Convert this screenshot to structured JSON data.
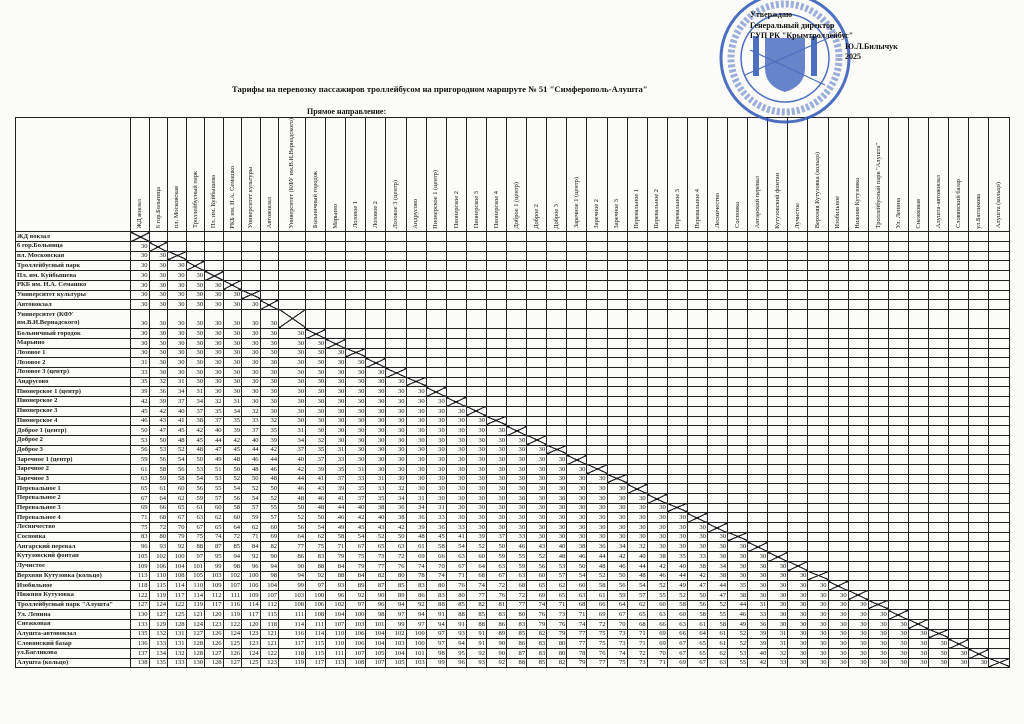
{
  "approval": {
    "line1": "Утверждаю",
    "line2": "Генеральный директор",
    "line3": "ГУП РК \"Крымтроллейбус\"",
    "line4": "Ю.Л.Билычук",
    "line5": "2025"
  },
  "title": "Тарифы на перевозку пассажиров троллейбусом на пригородном маршруте № 51 \"Симферополь-Алушта\"",
  "subtitle": "Прямое направление:",
  "colors": {
    "stamp": "#2f57b8",
    "ink": "#111111"
  },
  "columns": [
    "ЖД вокзал",
    "6 гор.Больница",
    "пл. Московская",
    "Троллейбусный парк",
    "Пл. им. Куйбышева",
    "РКБ им. Н.А. Семашко",
    "Университет культуры",
    "Автовокзал",
    "Университет (КФУ им.В.И.Вернадского)",
    "Больничный городок",
    "Марьино",
    "Лозовое 1",
    "Лозовое 2",
    "Лозовое 3 (центр)",
    "Андрусово",
    "Пионерское 1 (центр)",
    "Пионерское 2",
    "Пионерское 3",
    "Пионерское 4",
    "Доброе 1 (центр)",
    "Доброе 2",
    "Доброе 3",
    "Заречное 1 (центр)",
    "Заречное 2",
    "Заречное 3",
    "Перевальное 1",
    "Перевальное 2",
    "Перевальное 3",
    "Перевальное 4",
    "Лесничество",
    "Сосновка",
    "Ангарский перевал",
    "Кутузовский фонтан",
    "Лучистое",
    "Верхняя Кутузовка (кольцо)",
    "Изобильное",
    "Нижняя Кутузовка",
    "Троллейбусный парк \"Алушта\"",
    "Ул. Ленина",
    "Снежковая",
    "Алушта-автовокзал",
    "Словянский базар",
    "ул.Багликова",
    "Алушта (кольцо)"
  ],
  "rows": [
    {
      "label": "ЖД вокзал",
      "fares": []
    },
    {
      "label": "6 гор.Больница",
      "fares": [
        30
      ]
    },
    {
      "label": "пл. Московская",
      "fares": [
        30,
        30
      ]
    },
    {
      "label": "Троллейбусный парк",
      "fares": [
        30,
        30,
        30
      ]
    },
    {
      "label": "Пл. им. Куйбышева",
      "fares": [
        30,
        30,
        30,
        30
      ]
    },
    {
      "label": "РКБ им. Н.А. Семашко",
      "fares": [
        30,
        30,
        30,
        30,
        30
      ]
    },
    {
      "label": "Университет культуры",
      "fares": [
        30,
        30,
        30,
        30,
        30,
        30
      ]
    },
    {
      "label": "Автовокзал",
      "fares": [
        30,
        30,
        30,
        30,
        30,
        30,
        30
      ]
    },
    {
      "label": "Университет (КФУ им.В.И.Вернадского)",
      "fares": [
        30,
        30,
        30,
        30,
        30,
        30,
        30,
        30
      ]
    },
    {
      "label": "Больничный городок",
      "fares": [
        30,
        30,
        30,
        30,
        30,
        30,
        30,
        30,
        30
      ]
    },
    {
      "label": "Марьино",
      "fares": [
        30,
        30,
        30,
        30,
        30,
        30,
        30,
        30,
        30,
        30
      ]
    },
    {
      "label": "Лозовое 1",
      "fares": [
        30,
        30,
        30,
        30,
        30,
        30,
        30,
        30,
        30,
        30,
        30
      ]
    },
    {
      "label": "Лозовое 2",
      "fares": [
        31,
        30,
        30,
        30,
        30,
        30,
        30,
        30,
        30,
        30,
        30,
        30
      ]
    },
    {
      "label": "Лозовое 3 (центр)",
      "fares": [
        33,
        30,
        30,
        30,
        30,
        30,
        30,
        30,
        30,
        30,
        30,
        30,
        30
      ]
    },
    {
      "label": "Андрусово",
      "fares": [
        35,
        32,
        31,
        30,
        30,
        30,
        30,
        30,
        30,
        30,
        30,
        30,
        30,
        30
      ]
    },
    {
      "label": "Пионерское 1 (центр)",
      "fares": [
        39,
        36,
        34,
        31,
        30,
        30,
        30,
        30,
        30,
        30,
        30,
        30,
        30,
        30,
        30
      ]
    },
    {
      "label": "Пионерское 2",
      "fares": [
        42,
        39,
        37,
        34,
        32,
        31,
        30,
        30,
        30,
        30,
        30,
        30,
        30,
        30,
        30,
        30
      ]
    },
    {
      "label": "Пионерское 3",
      "fares": [
        45,
        42,
        40,
        37,
        35,
        34,
        32,
        30,
        30,
        30,
        30,
        30,
        30,
        30,
        30,
        30,
        30
      ]
    },
    {
      "label": "Пионерское 4",
      "fares": [
        46,
        43,
        41,
        38,
        37,
        35,
        33,
        32,
        30,
        30,
        30,
        30,
        30,
        30,
        30,
        30,
        30,
        30
      ]
    },
    {
      "label": "Доброе 1 (центр)",
      "fares": [
        50,
        47,
        45,
        42,
        40,
        39,
        37,
        35,
        31,
        30,
        30,
        30,
        30,
        30,
        30,
        30,
        30,
        30,
        30
      ]
    },
    {
      "label": "Доброе 2",
      "fares": [
        53,
        50,
        48,
        45,
        44,
        42,
        40,
        39,
        34,
        32,
        30,
        30,
        30,
        30,
        30,
        30,
        30,
        30,
        30,
        30
      ]
    },
    {
      "label": "Доброе 3",
      "fares": [
        56,
        53,
        52,
        48,
        47,
        45,
        44,
        42,
        37,
        35,
        31,
        30,
        30,
        30,
        30,
        30,
        30,
        30,
        30,
        30,
        30
      ]
    },
    {
      "label": "Заречное 1 (центр)",
      "fares": [
        59,
        56,
        54,
        50,
        49,
        48,
        46,
        44,
        40,
        37,
        33,
        30,
        30,
        30,
        30,
        30,
        30,
        30,
        30,
        30,
        30,
        30
      ]
    },
    {
      "label": "Заречное 2",
      "fares": [
        61,
        58,
        56,
        53,
        51,
        50,
        48,
        46,
        42,
        39,
        35,
        31,
        30,
        30,
        30,
        30,
        30,
        30,
        30,
        30,
        30,
        30,
        30
      ]
    },
    {
      "label": "Заречное 3",
      "fares": [
        63,
        59,
        58,
        54,
        53,
        52,
        50,
        48,
        44,
        41,
        37,
        33,
        31,
        30,
        30,
        30,
        30,
        30,
        30,
        30,
        30,
        30,
        30,
        30
      ]
    },
    {
      "label": "Перевальное 1",
      "fares": [
        65,
        61,
        60,
        56,
        55,
        54,
        52,
        50,
        46,
        43,
        39,
        35,
        33,
        32,
        30,
        30,
        30,
        30,
        30,
        30,
        30,
        30,
        30,
        30,
        30
      ]
    },
    {
      "label": "Перевальное 2",
      "fares": [
        67,
        64,
        62,
        59,
        57,
        56,
        54,
        52,
        48,
        46,
        41,
        37,
        35,
        34,
        31,
        30,
        30,
        30,
        30,
        30,
        30,
        30,
        30,
        30,
        30,
        30
      ]
    },
    {
      "label": "Перевальное 3",
      "fares": [
        69,
        66,
        65,
        61,
        60,
        58,
        57,
        55,
        50,
        48,
        44,
        40,
        38,
        36,
        34,
        31,
        30,
        30,
        30,
        30,
        30,
        30,
        30,
        30,
        30,
        30,
        30
      ]
    },
    {
      "label": "Перевальное 4",
      "fares": [
        71,
        68,
        67,
        63,
        62,
        60,
        59,
        57,
        52,
        50,
        46,
        42,
        40,
        38,
        36,
        33,
        30,
        30,
        30,
        30,
        30,
        30,
        30,
        30,
        30,
        30,
        30,
        30
      ]
    },
    {
      "label": "Лесничество",
      "fares": [
        75,
        72,
        70,
        67,
        65,
        64,
        62,
        60,
        56,
        54,
        49,
        45,
        43,
        42,
        39,
        36,
        33,
        30,
        30,
        30,
        30,
        30,
        30,
        30,
        30,
        30,
        30,
        30,
        30
      ]
    },
    {
      "label": "Сосновка",
      "fares": [
        83,
        80,
        79,
        75,
        74,
        72,
        71,
        69,
        64,
        62,
        58,
        54,
        52,
        50,
        48,
        45,
        41,
        39,
        37,
        33,
        30,
        30,
        30,
        30,
        30,
        30,
        30,
        30,
        30,
        30
      ]
    },
    {
      "label": "Ангарский перевал",
      "fares": [
        96,
        93,
        92,
        88,
        87,
        85,
        84,
        82,
        77,
        75,
        71,
        67,
        65,
        63,
        61,
        58,
        54,
        52,
        50,
        46,
        43,
        40,
        38,
        36,
        34,
        32,
        30,
        30,
        30,
        30,
        30
      ]
    },
    {
      "label": "Кутузовский фонтан",
      "fares": [
        105,
        102,
        100,
        97,
        95,
        94,
        92,
        90,
        86,
        83,
        79,
        75,
        73,
        72,
        69,
        66,
        63,
        60,
        59,
        55,
        52,
        48,
        46,
        44,
        42,
        40,
        38,
        35,
        33,
        30,
        30,
        30
      ]
    },
    {
      "label": "Лучистое",
      "fares": [
        109,
        106,
        104,
        101,
        99,
        98,
        96,
        94,
        90,
        88,
        84,
        79,
        77,
        76,
        74,
        70,
        67,
        64,
        63,
        59,
        56,
        53,
        50,
        48,
        46,
        44,
        42,
        40,
        38,
        34,
        30,
        30,
        30
      ]
    },
    {
      "label": "Верхняя Кутузовка (кольцо)",
      "fares": [
        113,
        110,
        108,
        105,
        103,
        102,
        100,
        98,
        94,
        92,
        88,
        84,
        82,
        80,
        78,
        74,
        71,
        68,
        67,
        63,
        60,
        57,
        54,
        52,
        50,
        48,
        46,
        44,
        42,
        38,
        30,
        30,
        30,
        30
      ]
    },
    {
      "label": "Изобильное",
      "fares": [
        118,
        115,
        114,
        110,
        109,
        107,
        106,
        104,
        99,
        97,
        93,
        89,
        87,
        85,
        83,
        80,
        76,
        74,
        72,
        68,
        65,
        62,
        60,
        58,
        56,
        54,
        52,
        49,
        47,
        44,
        35,
        30,
        30,
        30,
        30
      ]
    },
    {
      "label": "Нижняя Кутузовка",
      "fares": [
        122,
        119,
        117,
        114,
        112,
        111,
        109,
        107,
        103,
        100,
        96,
        92,
        90,
        89,
        86,
        83,
        80,
        77,
        76,
        72,
        69,
        65,
        63,
        61,
        59,
        57,
        55,
        52,
        50,
        47,
        38,
        30,
        30,
        30,
        30,
        30
      ]
    },
    {
      "label": "Троллейбусный парк \"Алушта\"",
      "fares": [
        127,
        124,
        122,
        119,
        117,
        116,
        114,
        112,
        108,
        106,
        102,
        97,
        96,
        94,
        92,
        88,
        85,
        82,
        81,
        77,
        74,
        71,
        68,
        66,
        64,
        62,
        60,
        58,
        56,
        52,
        44,
        31,
        30,
        30,
        30,
        30,
        30
      ]
    },
    {
      "label": "Ул. Ленина",
      "fares": [
        130,
        127,
        125,
        121,
        120,
        119,
        117,
        115,
        111,
        108,
        104,
        100,
        98,
        97,
        94,
        91,
        88,
        85,
        83,
        80,
        76,
        73,
        71,
        69,
        67,
        65,
        63,
        60,
        58,
        55,
        46,
        33,
        30,
        30,
        30,
        30,
        30,
        30
      ]
    },
    {
      "label": "Снежковая",
      "fares": [
        133,
        129,
        128,
        124,
        123,
        122,
        120,
        118,
        114,
        111,
        107,
        103,
        101,
        99,
        97,
        94,
        91,
        88,
        86,
        83,
        79,
        76,
        74,
        72,
        70,
        68,
        66,
        63,
        61,
        58,
        49,
        36,
        30,
        30,
        30,
        30,
        30,
        30,
        30
      ]
    },
    {
      "label": "Алушта-автовокзал",
      "fares": [
        135,
        132,
        131,
        127,
        126,
        124,
        123,
        121,
        116,
        114,
        110,
        106,
        104,
        102,
        100,
        97,
        93,
        91,
        89,
        85,
        82,
        79,
        77,
        75,
        73,
        71,
        69,
        66,
        64,
        61,
        52,
        39,
        31,
        30,
        30,
        30,
        30,
        30,
        30,
        30
      ]
    },
    {
      "label": "Словянский базар",
      "fares": [
        136,
        133,
        131,
        128,
        126,
        125,
        123,
        121,
        117,
        115,
        110,
        106,
        104,
        103,
        100,
        97,
        94,
        91,
        90,
        86,
        83,
        80,
        77,
        75,
        73,
        71,
        69,
        67,
        65,
        61,
        52,
        39,
        31,
        30,
        30,
        30,
        30,
        30,
        30,
        30,
        30
      ]
    },
    {
      "label": "ул.Багликова",
      "fares": [
        137,
        134,
        132,
        128,
        127,
        126,
        124,
        122,
        118,
        115,
        111,
        107,
        105,
        104,
        101,
        98,
        95,
        92,
        90,
        87,
        83,
        80,
        78,
        76,
        74,
        72,
        70,
        67,
        65,
        62,
        53,
        40,
        32,
        30,
        30,
        30,
        30,
        30,
        30,
        30,
        30,
        30
      ]
    },
    {
      "label": "Алушта (кольцо)",
      "fares": [
        138,
        135,
        133,
        130,
        128,
        127,
        125,
        123,
        119,
        117,
        113,
        108,
        107,
        105,
        103,
        99,
        96,
        93,
        92,
        88,
        85,
        82,
        79,
        77,
        75,
        73,
        71,
        69,
        67,
        63,
        55,
        42,
        33,
        30,
        30,
        30,
        30,
        30,
        30,
        30,
        30,
        30,
        30
      ]
    }
  ]
}
